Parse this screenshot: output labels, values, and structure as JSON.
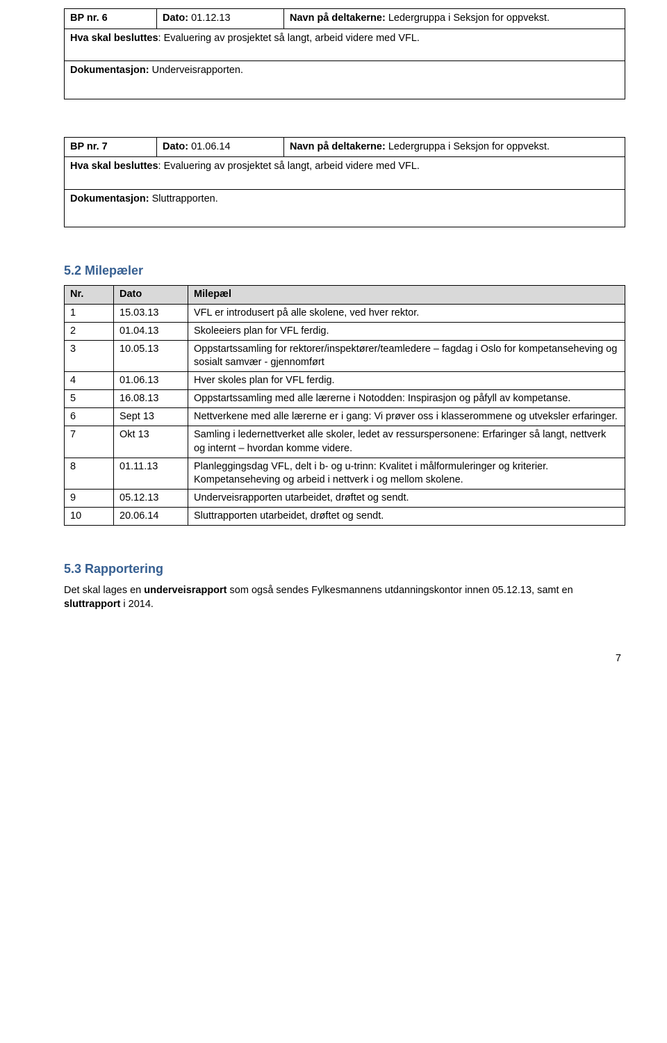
{
  "bp1": {
    "col1_label": "BP nr. 6",
    "col2_label": "Dato:",
    "col2_value": "01.12.13",
    "col3_label": "Navn på deltakerne:",
    "col3_value": "Ledergruppa i Seksjon for oppvekst.",
    "decide_label": "Hva skal besluttes",
    "decide_value": ": Evaluering av prosjektet så langt, arbeid videre med VFL.",
    "doc_label": "Dokumentasjon:",
    "doc_value": "Underveisrapporten."
  },
  "bp2": {
    "col1_label": "BP nr. 7",
    "col2_label": "Dato:",
    "col2_value": "01.06.14",
    "col3_label": "Navn på deltakerne:",
    "col3_value": "Ledergruppa i Seksjon for oppvekst.",
    "decide_label": "Hva skal besluttes",
    "decide_value": ": Evaluering av prosjektet så langt, arbeid videre med VFL.",
    "doc_label": "Dokumentasjon:",
    "doc_value": "Sluttrapporten."
  },
  "sec52": {
    "heading": "5.2  Milepæler",
    "columns": [
      "Nr.",
      "Dato",
      "Milepæl"
    ],
    "rows": [
      {
        "nr": "1",
        "dato": "15.03.13",
        "text": "VFL er introdusert på alle skolene, ved hver rektor."
      },
      {
        "nr": "2",
        "dato": "01.04.13",
        "text": "Skoleeiers plan for VFL ferdig."
      },
      {
        "nr": "3",
        "dato": "10.05.13",
        "text": "Oppstartssamling for rektorer/inspektører/teamledere – fagdag i Oslo for kompetanseheving og sosialt samvær - gjennomført"
      },
      {
        "nr": "4",
        "dato": "01.06.13",
        "text": "Hver skoles plan for VFL ferdig."
      },
      {
        "nr": "5",
        "dato": "16.08.13",
        "text": "Oppstartssamling med alle lærerne i Notodden: Inspirasjon og påfyll av kompetanse."
      },
      {
        "nr": "6",
        "dato": "Sept 13",
        "text": "Nettverkene med alle lærerne er i gang: Vi prøver oss i klasserommene og utveksler erfaringer."
      },
      {
        "nr": "7",
        "dato": "Okt 13",
        "text": "Samling i ledernettverket alle skoler, ledet av ressurspersonene: Erfaringer så langt, nettverk og internt – hvordan komme videre."
      },
      {
        "nr": "8",
        "dato": "01.11.13",
        "text": "Planleggingsdag VFL, delt i b- og u-trinn: Kvalitet i målformuleringer og kriterier. Kompetanseheving og arbeid i nettverk i og mellom skolene."
      },
      {
        "nr": "9",
        "dato": "05.12.13",
        "text": "Underveisrapporten utarbeidet, drøftet og sendt."
      },
      {
        "nr": "10",
        "dato": "20.06.14",
        "text": "Sluttrapporten utarbeidet, drøftet og sendt."
      }
    ]
  },
  "sec53": {
    "heading": "5.3  Rapportering",
    "pre": "Det skal lages en ",
    "bold1": "underveisrapport",
    "mid": " som også sendes Fylkesmannens utdanningskontor innen 05.12.13, samt en ",
    "bold2": "sluttrapport",
    "post": " i 2014."
  },
  "page_number": "7"
}
